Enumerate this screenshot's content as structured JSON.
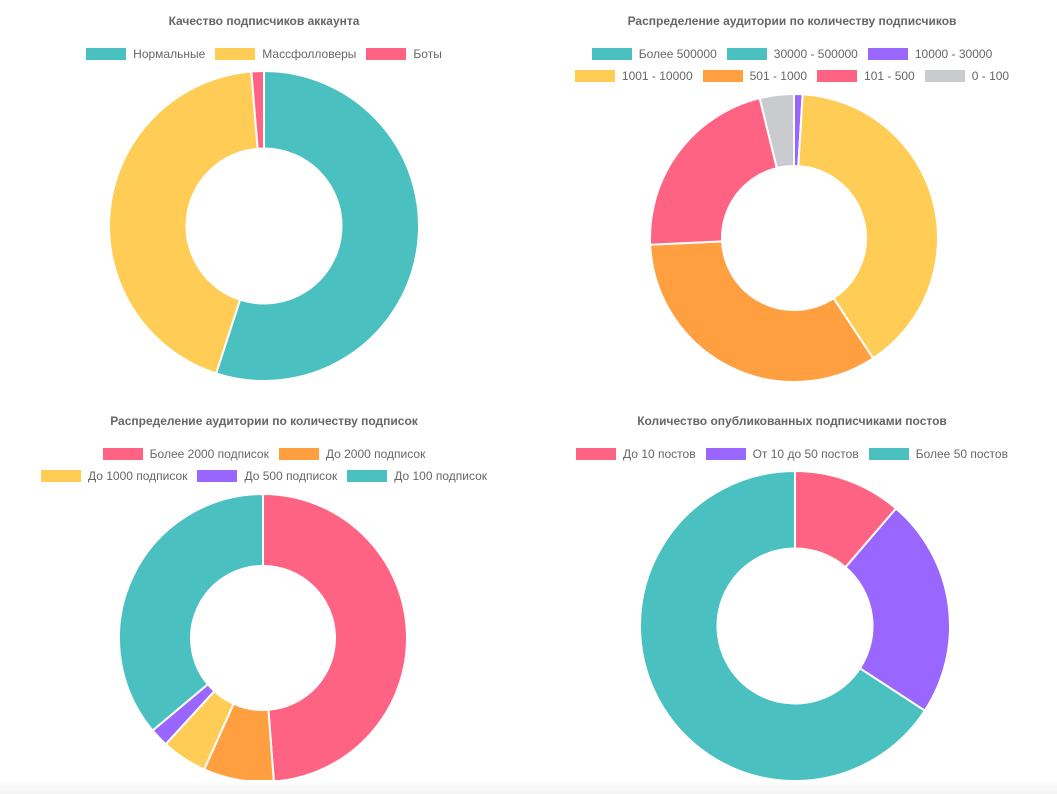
{
  "colors": {
    "teal": "#4bc0c0",
    "yellow": "#ffcd56",
    "red": "#ff6384",
    "purple": "#9966ff",
    "orange": "#ff9f40",
    "grey": "#c9cbcf"
  },
  "chart_data": [
    {
      "type": "pie",
      "title": "Качество подписчиков аккаунта",
      "categories": [
        "Нормальные",
        "Массфолловеры",
        "Боты"
      ],
      "values": [
        55,
        43.7,
        1.3
      ],
      "colors": [
        "#4bc0c0",
        "#ffcd56",
        "#ff6384"
      ],
      "legend": "top"
    },
    {
      "type": "pie",
      "title": "Распределение аудитории по количеству подписчиков",
      "categories": [
        "Более 500000",
        "30000 - 500000",
        "10000 - 30000",
        "1001 - 10000",
        "501 - 1000",
        "101 - 500",
        "0 - 100"
      ],
      "values": [
        0,
        0,
        0.9,
        37.4,
        31.5,
        20.6,
        3.6
      ],
      "colors": [
        "#4bc0c0",
        "#4bc0c0",
        "#9966ff",
        "#ffcd56",
        "#ff9f40",
        "#ff6384",
        "#c9cbcf"
      ],
      "legend": "top"
    },
    {
      "type": "pie",
      "title": "Распределение аудитории по количеству подписок",
      "categories": [
        "Более 2000 подписок",
        "До 2000 подписок",
        "До 1000 подписок",
        "До 500 подписок",
        "До 100 подписок"
      ],
      "values": [
        48.8,
        7.9,
        5.1,
        2.1,
        36.1
      ],
      "colors": [
        "#ff6384",
        "#ff9f40",
        "#ffcd56",
        "#9966ff",
        "#4bc0c0"
      ],
      "legend": "top"
    },
    {
      "type": "pie",
      "title": "Количество опубликованных подписчиками постов",
      "categories": [
        "До 10 постов",
        "От 10 до 50 постов",
        "Более 50 постов"
      ],
      "values": [
        11.3,
        22.9,
        65.8
      ],
      "colors": [
        "#ff6384",
        "#9966ff",
        "#4bc0c0"
      ],
      "legend": "top"
    }
  ]
}
